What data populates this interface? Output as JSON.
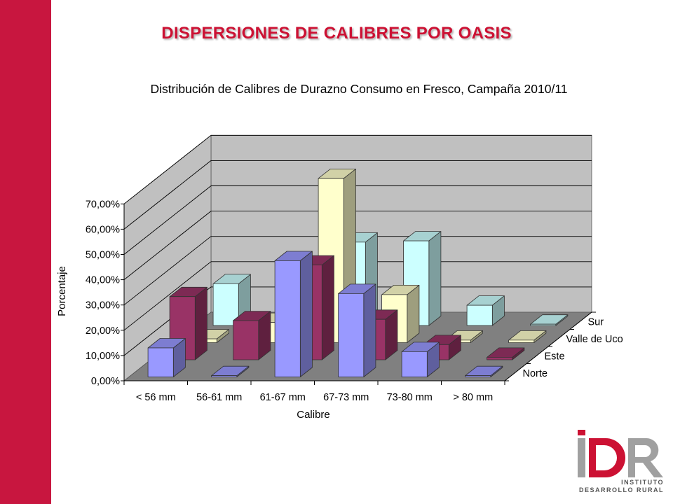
{
  "slide": {
    "title": "DISPERSIONES DE CALIBRES POR OASIS",
    "title_color": "#cc1133",
    "bar_color": "#c8163f"
  },
  "logo": {
    "mark": "iDR",
    "line1": "INSTITUTO",
    "line2": "DESARROLLO RURAL",
    "primary": "#cc1133",
    "secondary": "#a0a0a0"
  },
  "chart_data": {
    "type": "bar",
    "style": "3d-column",
    "title": "Distribución de  Calibres de Durazno Consumo en Fresco, Campaña 2010/11",
    "xlabel": "Calibre",
    "ylabel": "Porcentaje",
    "categories": [
      "<  56 mm",
      "56-61 mm",
      "61-67 mm",
      "67-73 mm",
      "73-80 mm",
      "> 80 mm"
    ],
    "series": [
      {
        "name": "Norte",
        "color": "#9999ff",
        "values": [
          11.5,
          0.5,
          46.0,
          33.0,
          10.0,
          0.5
        ]
      },
      {
        "name": "Este",
        "color": "#993366",
        "values": [
          25.0,
          15.5,
          37.5,
          16.0,
          6.0,
          1.0
        ]
      },
      {
        "name": "Valle de Uco",
        "color": "#ffffcc",
        "values": [
          1.5,
          8.0,
          65.0,
          19.0,
          1.0,
          1.0
        ]
      },
      {
        "name": "Sur",
        "color": "#ccffff",
        "values": [
          16.5,
          0.0,
          33.0,
          33.5,
          8.0,
          0.5
        ]
      }
    ],
    "yticks": [
      "0,00%",
      "10,00%",
      "20,00%",
      "30,00%",
      "40,00%",
      "50,00%",
      "60,00%",
      "70,00%"
    ],
    "ylim": [
      0,
      70
    ],
    "ystep": 10,
    "grid": true,
    "legend": "right-depth-axis",
    "wall_color": "#c0c0c0",
    "floor_color": "#808080"
  }
}
